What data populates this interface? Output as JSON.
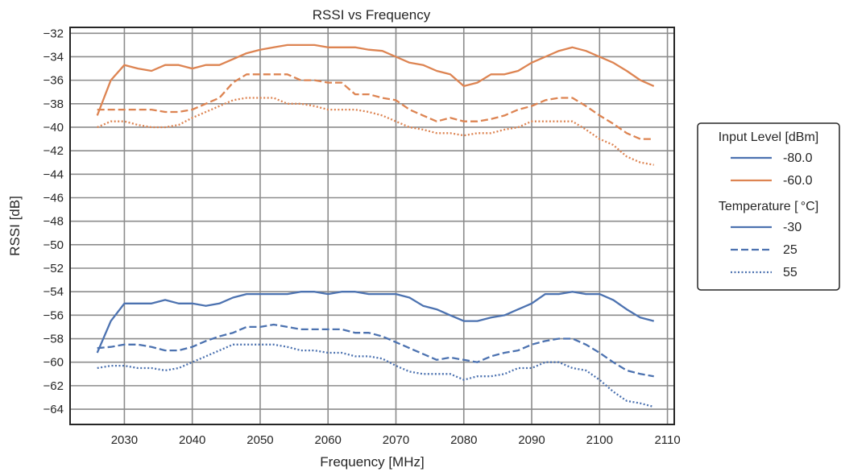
{
  "chart_data": {
    "type": "line",
    "title": "RSSI vs Frequency",
    "xlabel": "Frequency [MHz]",
    "ylabel": "RSSI [dB]",
    "xlim": [
      2022,
      2111
    ],
    "ylim": [
      -65.3,
      -31.5
    ],
    "xticks": [
      2030,
      2040,
      2050,
      2060,
      2070,
      2080,
      2090,
      2100,
      2110
    ],
    "yticks": [
      -32,
      -34,
      -36,
      -38,
      -40,
      -42,
      -44,
      -46,
      -48,
      -50,
      -52,
      -54,
      -56,
      -58,
      -60,
      -62,
      -64
    ],
    "grid": true,
    "legend": {
      "placement": "right",
      "groups": [
        {
          "title": "Input Level [dBm]",
          "entries": [
            {
              "label": "-80.0",
              "color": "#4c72b0",
              "dash": "solid"
            },
            {
              "label": "-60.0",
              "color": "#dd8452",
              "dash": "solid"
            }
          ]
        },
        {
          "title": "Temperature [ °C]",
          "entries": [
            {
              "label": "-30",
              "color": "#4c72b0",
              "dash": "solid"
            },
            {
              "label": "25",
              "color": "#4c72b0",
              "dash": "dashed"
            },
            {
              "label": "55",
              "color": "#4c72b0",
              "dash": "dotted"
            }
          ]
        }
      ]
    },
    "x": [
      2026,
      2028,
      2030,
      2032,
      2034,
      2036,
      2038,
      2040,
      2042,
      2044,
      2046,
      2048,
      2050,
      2052,
      2054,
      2056,
      2058,
      2060,
      2062,
      2064,
      2066,
      2068,
      2070,
      2072,
      2074,
      2076,
      2078,
      2080,
      2082,
      2084,
      2086,
      2088,
      2090,
      2092,
      2094,
      2096,
      2098,
      2100,
      2102,
      2104,
      2106,
      2108
    ],
    "series": [
      {
        "input_level": "-60.0",
        "temperature": "-30",
        "color": "#dd8452",
        "dash": "solid",
        "values": [
          -39.0,
          -36.0,
          -34.7,
          -35.0,
          -35.2,
          -34.7,
          -34.7,
          -35.0,
          -34.7,
          -34.7,
          -34.2,
          -33.7,
          -33.4,
          -33.2,
          -33.0,
          -33.0,
          -33.0,
          -33.2,
          -33.2,
          -33.2,
          -33.4,
          -33.5,
          -34.0,
          -34.5,
          -34.7,
          -35.2,
          -35.5,
          -36.5,
          -36.2,
          -35.5,
          -35.5,
          -35.2,
          -34.5,
          -34.0,
          -33.5,
          -33.2,
          -33.5,
          -34.0,
          -34.5,
          -35.2,
          -36.0,
          -36.5
        ]
      },
      {
        "input_level": "-60.0",
        "temperature": "25",
        "color": "#dd8452",
        "dash": "dashed",
        "values": [
          -38.5,
          -38.5,
          -38.5,
          -38.5,
          -38.5,
          -38.7,
          -38.7,
          -38.5,
          -38.0,
          -37.5,
          -36.2,
          -35.5,
          -35.5,
          -35.5,
          -35.5,
          -36.0,
          -36.0,
          -36.2,
          -36.2,
          -37.2,
          -37.2,
          -37.5,
          -37.7,
          -38.5,
          -39.0,
          -39.5,
          -39.2,
          -39.5,
          -39.5,
          -39.3,
          -39.0,
          -38.5,
          -38.2,
          -37.7,
          -37.5,
          -37.5,
          -38.2,
          -39.0,
          -39.7,
          -40.5,
          -41.0,
          -41.0
        ]
      },
      {
        "input_level": "-60.0",
        "temperature": "55",
        "color": "#dd8452",
        "dash": "dotted",
        "values": [
          -40.0,
          -39.5,
          -39.5,
          -39.8,
          -40.0,
          -40.0,
          -39.8,
          -39.2,
          -38.7,
          -38.2,
          -37.7,
          -37.5,
          -37.5,
          -37.5,
          -38.0,
          -38.0,
          -38.2,
          -38.5,
          -38.5,
          -38.5,
          -38.7,
          -39.0,
          -39.5,
          -40.0,
          -40.2,
          -40.5,
          -40.5,
          -40.7,
          -40.5,
          -40.5,
          -40.2,
          -40.0,
          -39.5,
          -39.5,
          -39.5,
          -39.5,
          -40.2,
          -41.0,
          -41.5,
          -42.5,
          -43.0,
          -43.2
        ]
      },
      {
        "input_level": "-80.0",
        "temperature": "-30",
        "color": "#4c72b0",
        "dash": "solid",
        "values": [
          -59.2,
          -56.5,
          -55.0,
          -55.0,
          -55.0,
          -54.7,
          -55.0,
          -55.0,
          -55.2,
          -55.0,
          -54.5,
          -54.2,
          -54.2,
          -54.2,
          -54.2,
          -54.0,
          -54.0,
          -54.2,
          -54.0,
          -54.0,
          -54.2,
          -54.2,
          -54.2,
          -54.5,
          -55.2,
          -55.5,
          -56.0,
          -56.5,
          -56.5,
          -56.2,
          -56.0,
          -55.5,
          -55.0,
          -54.2,
          -54.2,
          -54.0,
          -54.2,
          -54.2,
          -54.7,
          -55.5,
          -56.2,
          -56.5
        ]
      },
      {
        "input_level": "-80.0",
        "temperature": "25",
        "color": "#4c72b0",
        "dash": "dashed",
        "values": [
          -58.8,
          -58.7,
          -58.5,
          -58.5,
          -58.7,
          -59.0,
          -59.0,
          -58.7,
          -58.2,
          -57.8,
          -57.5,
          -57.0,
          -57.0,
          -56.8,
          -57.0,
          -57.2,
          -57.2,
          -57.2,
          -57.2,
          -57.5,
          -57.5,
          -57.8,
          -58.3,
          -58.8,
          -59.3,
          -59.8,
          -59.6,
          -59.8,
          -60.0,
          -59.5,
          -59.2,
          -59.0,
          -58.5,
          -58.2,
          -58.0,
          -58.0,
          -58.5,
          -59.2,
          -60.0,
          -60.7,
          -61.0,
          -61.2
        ]
      },
      {
        "input_level": "-80.0",
        "temperature": "55",
        "color": "#4c72b0",
        "dash": "dotted",
        "values": [
          -60.5,
          -60.3,
          -60.3,
          -60.5,
          -60.5,
          -60.7,
          -60.5,
          -60.0,
          -59.5,
          -59.0,
          -58.5,
          -58.5,
          -58.5,
          -58.5,
          -58.7,
          -59.0,
          -59.0,
          -59.2,
          -59.2,
          -59.5,
          -59.5,
          -59.7,
          -60.3,
          -60.8,
          -61.0,
          -61.0,
          -61.0,
          -61.5,
          -61.2,
          -61.2,
          -61.0,
          -60.5,
          -60.5,
          -60.0,
          -60.0,
          -60.5,
          -60.7,
          -61.5,
          -62.5,
          -63.3,
          -63.5,
          -63.8
        ]
      }
    ]
  }
}
